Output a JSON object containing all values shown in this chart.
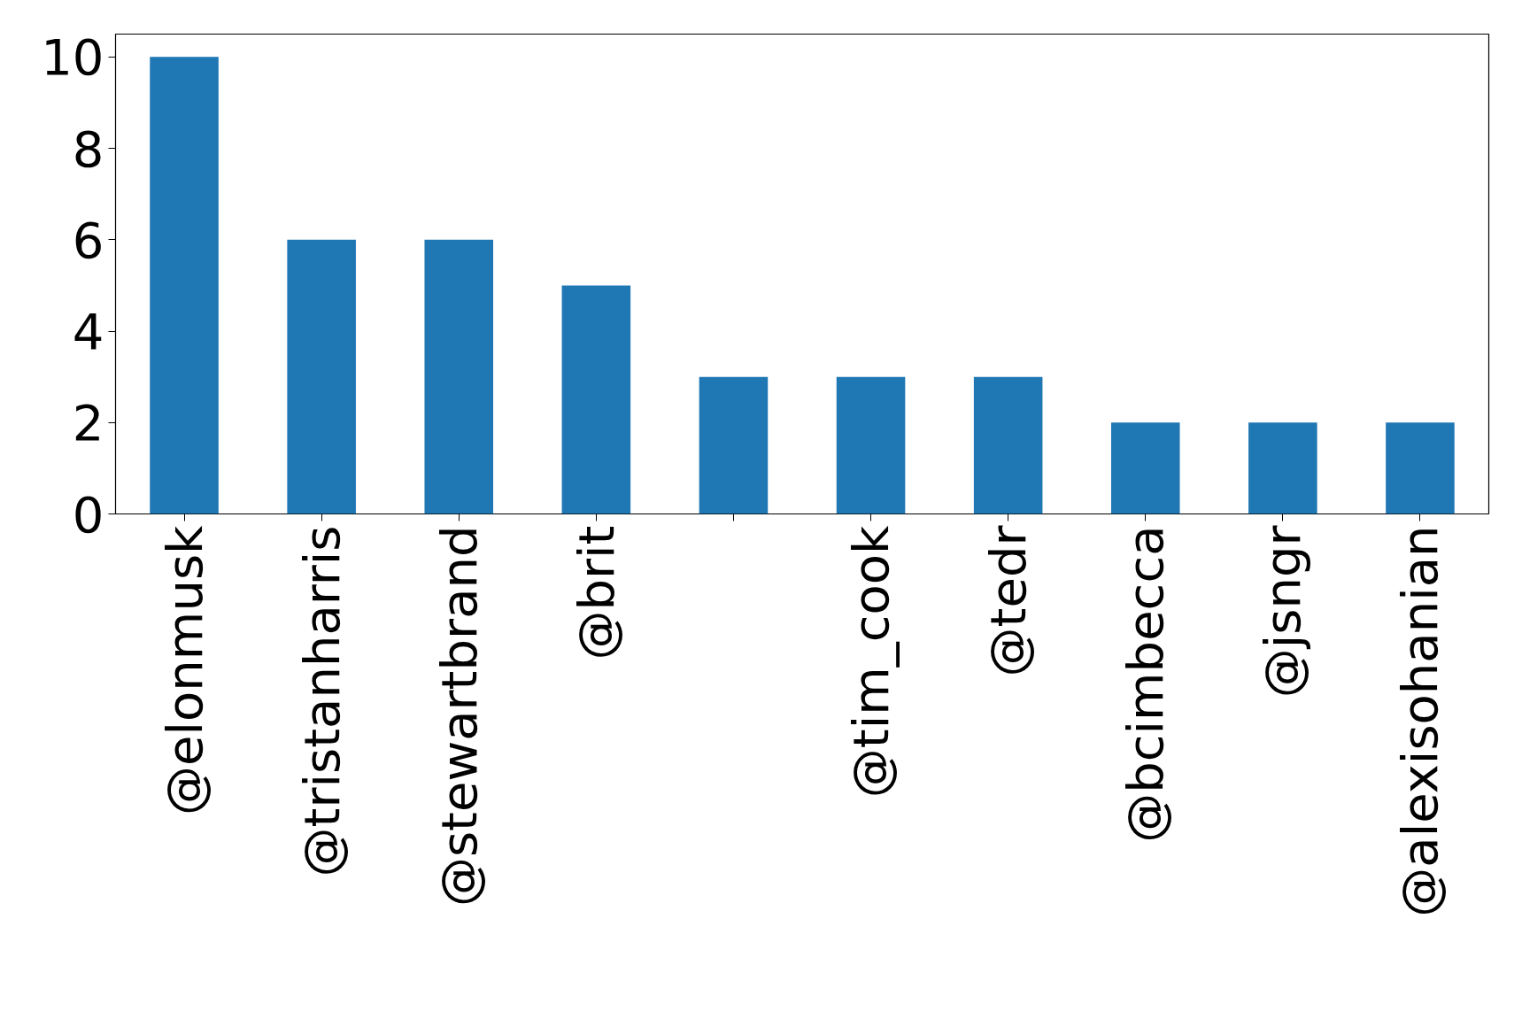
{
  "chart_data": {
    "type": "bar",
    "categories": [
      "@elonmusk",
      "@tristanharris",
      "@stewartbrand",
      "@brit",
      null,
      "@tim_cook",
      "@tedr",
      "@bcimbecca",
      "@jsngr",
      "@alexisohanian"
    ],
    "values": [
      10,
      6,
      6,
      5,
      3,
      3,
      3,
      2,
      2,
      2
    ],
    "color": "#1f77b4",
    "ylim": [
      0,
      10.5
    ],
    "yticks": [
      0,
      2,
      4,
      6,
      8,
      10
    ],
    "grid": false
  }
}
